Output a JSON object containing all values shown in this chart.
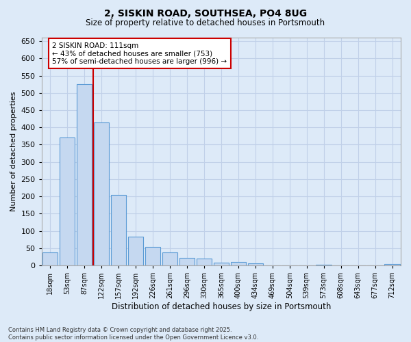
{
  "title_line1": "2, SISKIN ROAD, SOUTHSEA, PO4 8UG",
  "title_line2": "Size of property relative to detached houses in Portsmouth",
  "xlabel": "Distribution of detached houses by size in Portsmouth",
  "ylabel": "Number of detached properties",
  "categories": [
    "18sqm",
    "53sqm",
    "87sqm",
    "122sqm",
    "157sqm",
    "192sqm",
    "226sqm",
    "261sqm",
    "296sqm",
    "330sqm",
    "365sqm",
    "400sqm",
    "434sqm",
    "469sqm",
    "504sqm",
    "539sqm",
    "573sqm",
    "608sqm",
    "643sqm",
    "677sqm",
    "712sqm"
  ],
  "values": [
    37,
    370,
    525,
    415,
    205,
    84,
    54,
    37,
    22,
    20,
    9,
    10,
    6,
    0,
    0,
    0,
    3,
    0,
    0,
    0,
    5
  ],
  "bar_color": "#c5d8f0",
  "bar_edge_color": "#5b9bd5",
  "vline_index": 2.5,
  "vline_color": "#cc0000",
  "annotation_text": "2 SISKIN ROAD: 111sqm\n← 43% of detached houses are smaller (753)\n57% of semi-detached houses are larger (996) →",
  "annotation_box_color": "#ffffff",
  "annotation_box_edge": "#cc0000",
  "ylim": [
    0,
    660
  ],
  "yticks": [
    0,
    50,
    100,
    150,
    200,
    250,
    300,
    350,
    400,
    450,
    500,
    550,
    600,
    650
  ],
  "grid_color": "#c0d0e8",
  "footnote_line1": "Contains HM Land Registry data © Crown copyright and database right 2025.",
  "footnote_line2": "Contains public sector information licensed under the Open Government Licence v3.0.",
  "bg_color": "#ddeaf8"
}
